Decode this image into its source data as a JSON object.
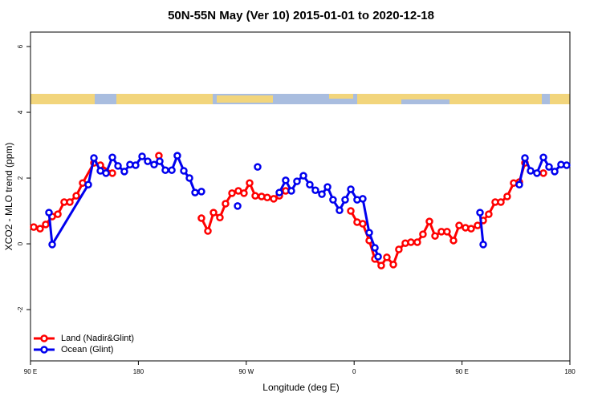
{
  "chart_data": {
    "type": "line",
    "title": "50N-55N May (Ver 10)   2015-01-01 to 2020-12-18",
    "x_label": "Longitude (deg E)",
    "y_label": "XCO2 - MLO trend (ppm)",
    "xlim": [
      90,
      540
    ],
    "xticks": [
      {
        "value": 90,
        "label": "90 E"
      },
      {
        "value": 180,
        "label": "180"
      },
      {
        "value": 270,
        "label": "90 W"
      },
      {
        "value": 360,
        "label": "0"
      },
      {
        "value": 450,
        "label": "90 E"
      },
      {
        "value": 540,
        "label": "180"
      }
    ],
    "ylim": [
      -3.56,
      6.44
    ],
    "yticks": [
      -2,
      0,
      2,
      4,
      6
    ],
    "legend": "bottom-left",
    "series": [
      {
        "name": "Land (Nadir&Glint)",
        "color": "#ff0000",
        "x": [
          92.7,
          98.0,
          102.7,
          108.1,
          112.8,
          118.1,
          122.8,
          128.2,
          133.5,
          142.9,
          148.3,
          158.3,
          177,
          197.1,
          215,
          232.6,
          238.0,
          242.7,
          248.0,
          252.7,
          258.1,
          263.4,
          268.1,
          272.8,
          277.5,
          282.8,
          287.5,
          292.9,
          297.6,
          302.9,
          330,
          357.2,
          362.5,
          367.2,
          372.6,
          377.3,
          382.6,
          387.3,
          392.7,
          397.3,
          402.7,
          407.4,
          412.7,
          417.4,
          422.8,
          427.5,
          432.8,
          437.5,
          442.9,
          447.6,
          452.9,
          457.6,
          463.0,
          467.7,
          472.3,
          477.7,
          482.4,
          487.7,
          493.1,
          497.8,
          502.5,
          510,
          517.9
        ],
        "values": [
          0.51,
          0.46,
          0.59,
          0.83,
          0.9,
          1.27,
          1.27,
          1.46,
          1.85,
          2.46,
          2.39,
          2.15,
          null,
          2.68,
          null,
          0.78,
          0.39,
          0.95,
          0.8,
          1.22,
          1.54,
          1.61,
          1.54,
          1.85,
          1.46,
          1.44,
          1.41,
          1.37,
          1.46,
          1.61,
          null,
          1.0,
          0.66,
          0.61,
          0.1,
          -0.46,
          -0.66,
          -0.41,
          -0.63,
          -0.17,
          0.02,
          0.05,
          0.05,
          0.29,
          0.68,
          0.24,
          0.37,
          0.37,
          0.1,
          0.56,
          0.49,
          0.46,
          0.56,
          0.71,
          0.9,
          1.27,
          1.27,
          1.44,
          1.85,
          1.88,
          2.46,
          null,
          2.15
        ]
      },
      {
        "name": "Ocean (Glint)",
        "color": "#0000ee",
        "x": [
          105.4,
          108.1,
          138.2,
          142.9,
          148.3,
          153.0,
          158.3,
          163.0,
          168.3,
          173.0,
          177.7,
          183.1,
          187.8,
          193.1,
          197.8,
          202.5,
          207.9,
          212.5,
          217.9,
          222.6,
          227.3,
          232.6,
          248,
          262.8,
          271,
          279.5,
          290,
          297.6,
          302.9,
          307.6,
          312.3,
          317.7,
          323.0,
          327.7,
          333.1,
          337.8,
          342.4,
          347.8,
          352.5,
          357.2,
          362.5,
          367.2,
          372.6,
          377.3,
          380.0,
          420,
          465.0,
          467.7,
          480,
          497.8,
          502.5,
          507.2,
          512.5,
          517.9,
          522.6,
          527.3,
          532.6,
          537.3
        ],
        "values": [
          0.95,
          -0.02,
          1.8,
          2.61,
          2.22,
          2.15,
          2.63,
          2.37,
          2.2,
          2.41,
          2.39,
          2.66,
          2.51,
          2.41,
          2.51,
          2.24,
          2.24,
          2.68,
          2.22,
          2.0,
          1.56,
          1.59,
          null,
          1.15,
          null,
          2.34,
          null,
          1.56,
          1.93,
          1.61,
          1.9,
          2.07,
          1.8,
          1.63,
          1.51,
          1.73,
          1.34,
          1.02,
          1.34,
          1.66,
          1.34,
          1.37,
          0.34,
          -0.12,
          -0.39,
          null,
          0.95,
          -0.02,
          null,
          1.8,
          2.61,
          2.22,
          2.15,
          2.63,
          2.34,
          2.2,
          2.41,
          2.39
        ]
      }
    ]
  }
}
